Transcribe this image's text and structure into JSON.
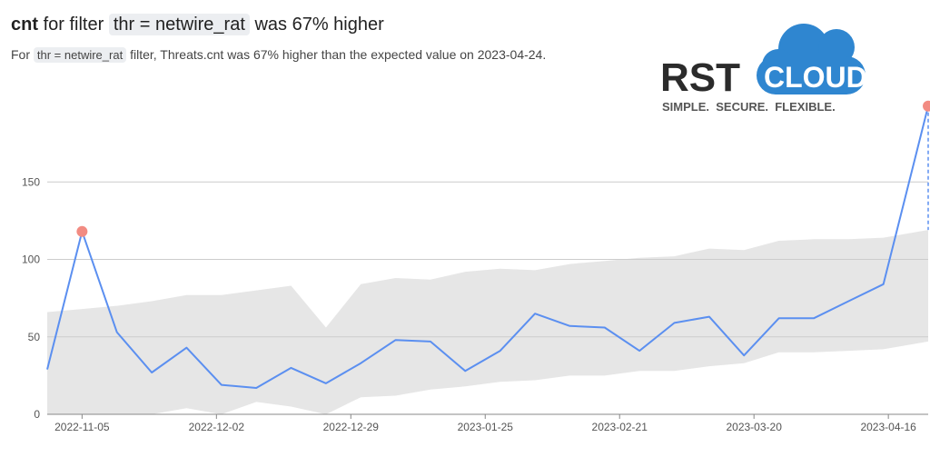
{
  "header": {
    "metric": "cnt",
    "for_filter": "for filter",
    "filter_expr": "thr = netwire_rat",
    "change": "was 67% higher",
    "sub_prefix": "For",
    "sub_suffix": "filter, Threats.cnt was 67% higher than the expected value on 2023-04-24."
  },
  "logo": {
    "brand_left": "RST",
    "brand_right": "CLOUD",
    "tagline": "SIMPLE.  SECURE.  FLEXIBLE.",
    "colors": {
      "cloud": "#2f86d0",
      "dark": "#2b2b2b",
      "tagline": "#555555"
    }
  },
  "chart_data": {
    "type": "line",
    "title": "",
    "xlabel": "",
    "ylabel": "",
    "ylim": [
      0,
      200
    ],
    "yticks": [
      0,
      50,
      100,
      150
    ],
    "xtick_labels": [
      "2022-11-05",
      "2022-12-02",
      "2022-12-29",
      "2023-01-25",
      "2023-02-21",
      "2023-03-20",
      "2023-04-16"
    ],
    "grid": true,
    "colors": {
      "line": "#5b8ff0",
      "band": "#e6e6e6",
      "anomaly": "#f28b82"
    },
    "series": [
      {
        "x": [
          "2022-10-29",
          "2022-11-05",
          "2022-11-12",
          "2022-11-19",
          "2022-11-26",
          "2022-12-03",
          "2022-12-10",
          "2022-12-17",
          "2022-12-24",
          "2022-12-31",
          "2023-01-07",
          "2023-01-14",
          "2023-01-21",
          "2023-01-28",
          "2023-02-04",
          "2023-02-11",
          "2023-02-18",
          "2023-02-25",
          "2023-03-04",
          "2023-03-11",
          "2023-03-18",
          "2023-03-25",
          "2023-04-01",
          "2023-04-08",
          "2023-04-15",
          "2023-04-24"
        ],
        "values": [
          29,
          118,
          53,
          27,
          43,
          19,
          17,
          30,
          20,
          33,
          48,
          47,
          28,
          41,
          65,
          57,
          56,
          41,
          59,
          63,
          38,
          62,
          62,
          73,
          84,
          199
        ]
      }
    ],
    "expected_band": {
      "x": [
        "2022-10-29",
        "2022-11-05",
        "2022-11-12",
        "2022-11-19",
        "2022-11-26",
        "2022-12-03",
        "2022-12-10",
        "2022-12-17",
        "2022-12-24",
        "2022-12-31",
        "2023-01-07",
        "2023-01-14",
        "2023-01-21",
        "2023-01-28",
        "2023-02-04",
        "2023-02-11",
        "2023-02-18",
        "2023-02-25",
        "2023-03-04",
        "2023-03-11",
        "2023-03-18",
        "2023-03-25",
        "2023-04-01",
        "2023-04-08",
        "2023-04-15",
        "2023-04-24"
      ],
      "upper": [
        66,
        68,
        70,
        73,
        77,
        77,
        80,
        83,
        56,
        84,
        88,
        87,
        92,
        94,
        93,
        97,
        99,
        101,
        102,
        107,
        106,
        112,
        113,
        113,
        114,
        119
      ],
      "lower": [
        0,
        0,
        0,
        0,
        4,
        0,
        8,
        5,
        0,
        11,
        12,
        16,
        18,
        21,
        22,
        25,
        25,
        28,
        28,
        31,
        33,
        40,
        40,
        41,
        42,
        47
      ]
    },
    "anomalies": [
      {
        "x": "2022-11-05",
        "value": 118
      },
      {
        "x": "2023-04-24",
        "value": 199
      }
    ]
  }
}
